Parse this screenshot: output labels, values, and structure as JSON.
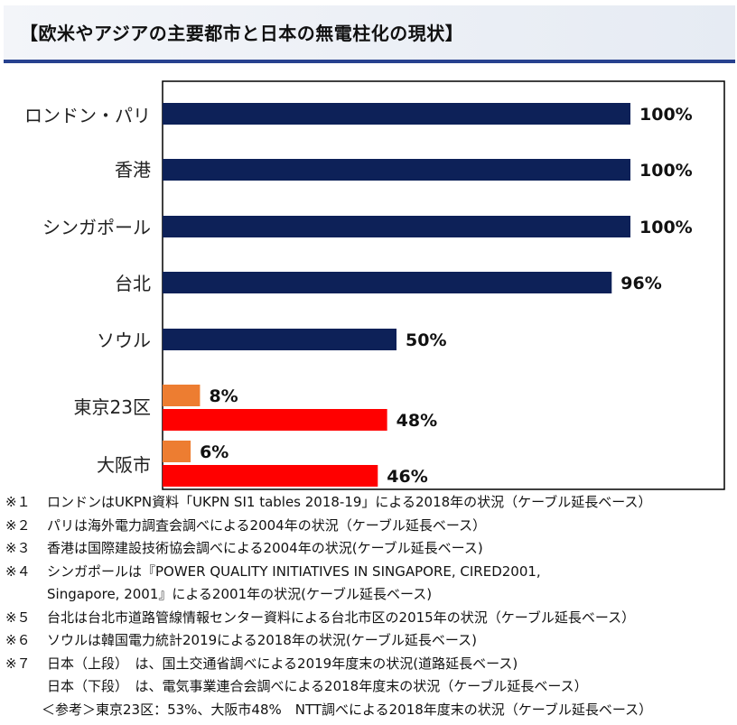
{
  "page": {
    "title": "【欧米やアジアの主要都市と日本の無電柱化の現状】"
  },
  "chart_data": {
    "type": "bar",
    "orientation": "horizontal",
    "xlim": [
      0,
      100
    ],
    "grid": false,
    "legend": "none",
    "categories": [
      "ロンドン・パリ",
      "香港",
      "シンガポール",
      "台北",
      "ソウル",
      "東京23区",
      "大阪市"
    ],
    "series": [
      {
        "values": [
          100,
          100,
          100,
          96,
          50,
          48,
          46
        ],
        "labels": [
          "100%",
          "100%",
          "100%",
          "96%",
          "50%",
          "48%",
          "46%"
        ],
        "colors": [
          "#0d2158",
          "#0d2158",
          "#0d2158",
          "#0d2158",
          "#0d2158",
          "#ff0000",
          "#ff0000"
        ]
      },
      {
        "values": [
          null,
          null,
          null,
          null,
          null,
          8,
          6
        ],
        "labels": [
          "",
          "",
          "",
          "",
          "",
          "8%",
          "6%"
        ],
        "colors": [
          "#ed7d31",
          "#ed7d31",
          "#ed7d31",
          "#ed7d31",
          "#ed7d31",
          "#ed7d31",
          "#ed7d31"
        ]
      }
    ]
  },
  "notes": [
    {
      "mark": "※１",
      "text": "ロンドンはUKPN資料「UKPN SI1 tables 2018-19」による2018年の状況（ケーブル延長ベース）"
    },
    {
      "mark": "※２",
      "text": "パリは海外電力調査会調べによる2004年の状況（ケーブル延長ベース）"
    },
    {
      "mark": "※３",
      "text": "香港は国際建設技術協会調べによる2004年の状況(ケーブル延長ベース)"
    },
    {
      "mark": "※４",
      "text": "シンガポールは『POWER QUALITY INITIATIVES IN SINGAPORE, CIRED2001,",
      "continuation": "Singapore, 2001』による2001年の状況(ケーブル延長ベース)"
    },
    {
      "mark": "※５",
      "text": "台北は台北市道路管線情報センター資料による台北市区の2015年の状況（ケーブル延長ベース）"
    },
    {
      "mark": "※６",
      "text": "ソウルは韓国電力統計2019による2018年の状況(ケーブル延長ベース)"
    },
    {
      "mark": "※７",
      "text": "日本（上段）　は、国土交通省調べによる2019年度末の状況(道路延長ベース)",
      "continuation": "日本（下段）　は、電気事業連合会調べによる2018年度末の状況（ケーブル延長ベース）",
      "reference": "＜参考＞東京23区：53%、大阪市48%　NTT調べによる2018年度末の状況（ケーブル延長ベース）"
    }
  ]
}
